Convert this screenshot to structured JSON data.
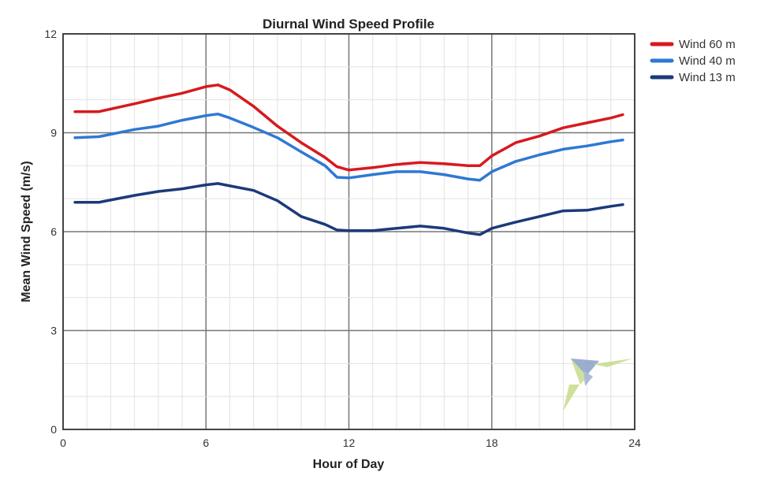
{
  "chart_data": {
    "type": "line",
    "title": "Diurnal Wind Speed Profile",
    "xlabel": "Hour of Day",
    "ylabel": "Mean Wind Speed (m/s)",
    "xlim": [
      0,
      24
    ],
    "ylim": [
      0,
      12
    ],
    "xticks": [
      0,
      6,
      12,
      18,
      24
    ],
    "yticks": [
      0,
      3,
      6,
      9,
      12
    ],
    "grid": true,
    "legend_position": "right-top",
    "x": [
      0.5,
      1.5,
      3,
      4,
      5,
      6,
      6.5,
      7,
      8,
      9,
      10,
      11,
      11.5,
      12,
      13,
      14,
      15,
      16,
      17,
      17.5,
      18,
      19,
      20,
      21,
      22,
      23,
      23.5
    ],
    "series": [
      {
        "name": "Wind 60 m",
        "color": "#d61a1f",
        "values": [
          9.64,
          9.64,
          9.88,
          10.05,
          10.2,
          10.4,
          10.45,
          10.3,
          9.8,
          9.2,
          8.7,
          8.25,
          7.97,
          7.87,
          7.94,
          8.04,
          8.1,
          8.06,
          8.0,
          8.0,
          8.3,
          8.7,
          8.9,
          9.15,
          9.3,
          9.45,
          9.55
        ]
      },
      {
        "name": "Wind 40 m",
        "color": "#2f78d4",
        "values": [
          8.85,
          8.88,
          9.1,
          9.2,
          9.38,
          9.52,
          9.57,
          9.45,
          9.16,
          8.85,
          8.42,
          8.0,
          7.65,
          7.63,
          7.73,
          7.82,
          7.82,
          7.73,
          7.6,
          7.56,
          7.82,
          8.13,
          8.33,
          8.5,
          8.6,
          8.73,
          8.78
        ]
      },
      {
        "name": "Wind 13 m",
        "color": "#1c3a7a",
        "values": [
          6.89,
          6.89,
          7.1,
          7.22,
          7.3,
          7.42,
          7.46,
          7.39,
          7.25,
          6.94,
          6.46,
          6.22,
          6.05,
          6.03,
          6.03,
          6.1,
          6.17,
          6.1,
          5.96,
          5.91,
          6.1,
          6.29,
          6.46,
          6.63,
          6.65,
          6.77,
          6.82
        ]
      }
    ]
  }
}
